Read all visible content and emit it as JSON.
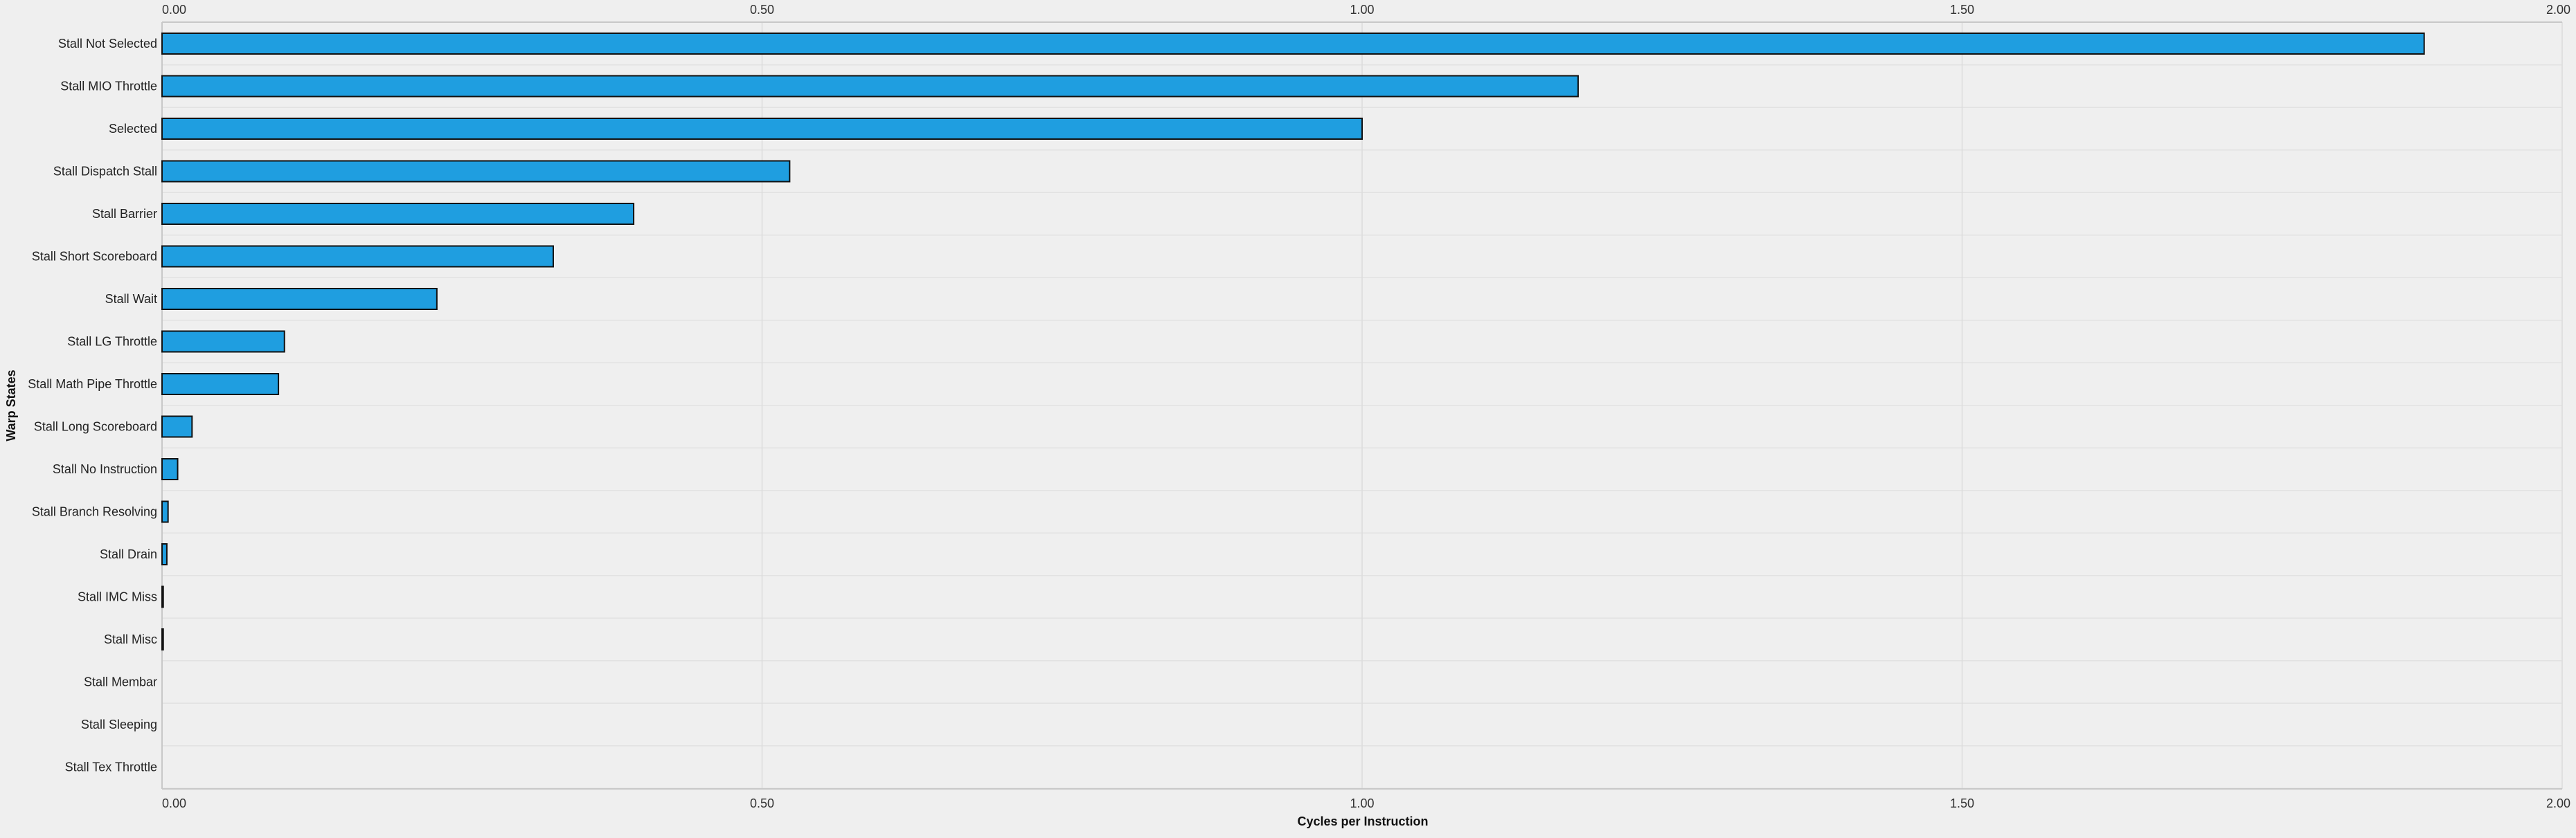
{
  "chart_data": {
    "type": "bar",
    "orientation": "horizontal",
    "xlabel": "Cycles per Instruction",
    "ylabel": "Warp States",
    "xlim": [
      0,
      2.0
    ],
    "x_ticks": [
      "0.00",
      "0.50",
      "1.00",
      "1.50",
      "2.00"
    ],
    "x_tick_values": [
      0,
      0.5,
      1.0,
      1.5,
      2.0
    ],
    "x_axis_position": "top and bottom",
    "grid": true,
    "bar_color": "#1f9ee0",
    "bar_edge_color": "#111111",
    "categories": [
      "Stall Not Selected",
      "Stall MIO Throttle",
      "Selected",
      "Stall Dispatch Stall",
      "Stall Barrier",
      "Stall Short Scoreboard",
      "Stall Wait",
      "Stall LG Throttle",
      "Stall Math Pipe Throttle",
      "Stall Long Scoreboard",
      "Stall No Instruction",
      "Stall Branch Resolving",
      "Stall Drain",
      "Stall IMC Miss",
      "Stall Misc",
      "Stall Membar",
      "Stall Sleeping",
      "Stall Tex Throttle"
    ],
    "values": [
      1.885,
      1.18,
      1.0,
      0.523,
      0.393,
      0.326,
      0.229,
      0.102,
      0.097,
      0.025,
      0.013,
      0.005,
      0.004,
      0.001,
      0.001,
      0,
      0,
      0
    ]
  }
}
